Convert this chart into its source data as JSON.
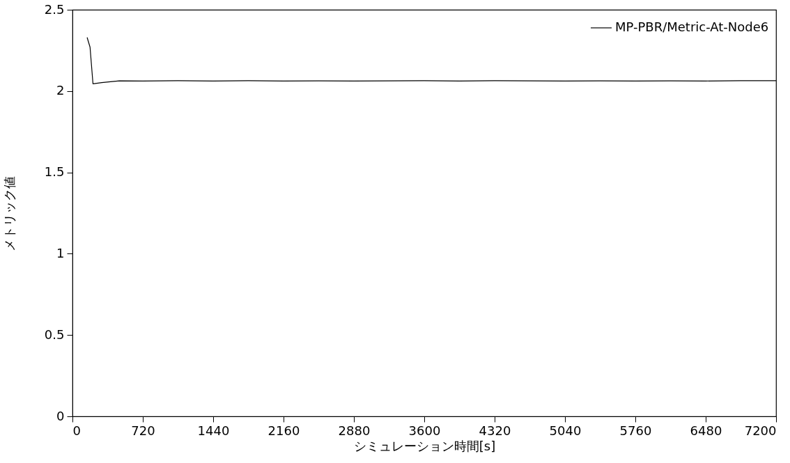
{
  "chart_data": {
    "type": "line",
    "xlabel": "シミュレーション時間[s]",
    "ylabel": "メトリック値",
    "x": [
      150,
      180,
      210,
      300,
      480,
      720,
      1080,
      1440,
      1800,
      2160,
      2520,
      2880,
      3240,
      3600,
      3960,
      4320,
      4680,
      5040,
      5400,
      5760,
      6120,
      6480,
      6840,
      7200
    ],
    "series": [
      {
        "name": "MP-PBR/Metric-At-Node6",
        "color": "#000000",
        "values": [
          2.33,
          2.27,
          2.045,
          2.052,
          2.063,
          2.062,
          2.064,
          2.062,
          2.064,
          2.062,
          2.063,
          2.062,
          2.063,
          2.064,
          2.062,
          2.064,
          2.063,
          2.062,
          2.063,
          2.062,
          2.063,
          2.062,
          2.064,
          2.064
        ]
      }
    ],
    "xlim": [
      0,
      7200
    ],
    "xticks": [
      0,
      720,
      1440,
      2160,
      2880,
      3600,
      4320,
      5040,
      5760,
      6480,
      7200
    ],
    "ylim": [
      0,
      2.5
    ],
    "yticks": [
      0,
      0.5,
      1,
      1.5,
      2,
      2.5
    ],
    "grid": false,
    "legend": "top right",
    "marker": "none",
    "line_style": "solid"
  }
}
